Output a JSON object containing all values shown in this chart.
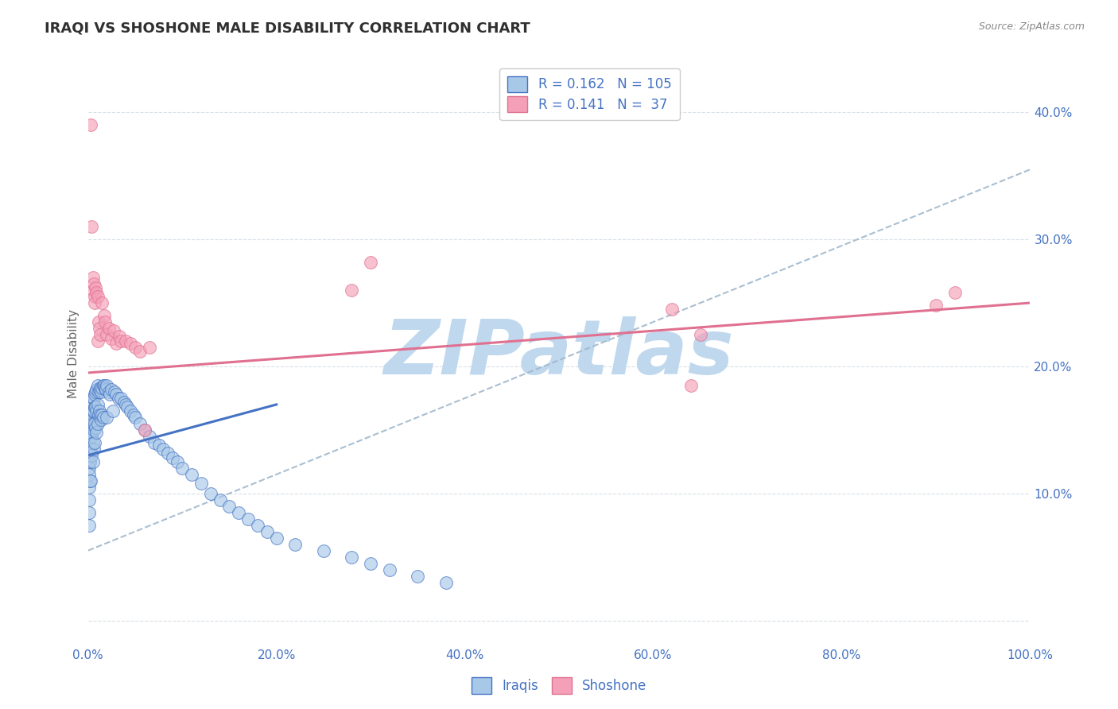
{
  "title": "IRAQI VS SHOSHONE MALE DISABILITY CORRELATION CHART",
  "source_text": "Source: ZipAtlas.com",
  "ylabel": "Male Disability",
  "xlim": [
    0.0,
    1.0
  ],
  "ylim": [
    -0.02,
    0.44
  ],
  "xtick_vals": [
    0.0,
    0.2,
    0.4,
    0.6,
    0.8,
    1.0
  ],
  "xtick_labels": [
    "0.0%",
    "20.0%",
    "40.0%",
    "60.0%",
    "80.0%",
    "100.0%"
  ],
  "ytick_vals": [
    0.0,
    0.1,
    0.2,
    0.3,
    0.4
  ],
  "ytick_labels_right": [
    "",
    "10.0%",
    "20.0%",
    "30.0%",
    "40.0%"
  ],
  "iraqi_color": "#a8c8e8",
  "shoshone_color": "#f4a0b8",
  "iraqi_line_color": "#4472c4",
  "shoshone_line_color": "#e07090",
  "dashed_line_color": "#a0b8cc",
  "R_iraqi": 0.162,
  "N_iraqi": 105,
  "R_shoshone": 0.141,
  "N_shoshone": 37,
  "legend_label_iraqi": "Iraqis",
  "legend_label_shoshone": "Shoshone",
  "background_color": "#ffffff",
  "grid_color": "#d8e0e8",
  "title_color": "#303030",
  "axis_color": "#4472c4",
  "watermark_color": "#c0d8ee",
  "iraqi_line_x": [
    0.0,
    0.2
  ],
  "iraqi_line_y": [
    0.13,
    0.17
  ],
  "shoshone_line_x": [
    0.0,
    1.0
  ],
  "shoshone_line_y": [
    0.195,
    0.25
  ],
  "dashed_line_x": [
    0.0,
    1.0
  ],
  "dashed_line_y": [
    0.055,
    0.355
  ],
  "iraqi_x": [
    0.001,
    0.001,
    0.001,
    0.001,
    0.001,
    0.001,
    0.001,
    0.001,
    0.001,
    0.001,
    0.002,
    0.002,
    0.002,
    0.002,
    0.002,
    0.002,
    0.003,
    0.003,
    0.003,
    0.003,
    0.003,
    0.004,
    0.004,
    0.004,
    0.004,
    0.005,
    0.005,
    0.005,
    0.005,
    0.005,
    0.006,
    0.006,
    0.006,
    0.006,
    0.007,
    0.007,
    0.007,
    0.007,
    0.008,
    0.008,
    0.008,
    0.009,
    0.009,
    0.009,
    0.01,
    0.01,
    0.01,
    0.011,
    0.011,
    0.012,
    0.012,
    0.013,
    0.013,
    0.014,
    0.014,
    0.015,
    0.015,
    0.016,
    0.016,
    0.017,
    0.018,
    0.019,
    0.02,
    0.02,
    0.022,
    0.023,
    0.025,
    0.026,
    0.028,
    0.03,
    0.032,
    0.035,
    0.038,
    0.04,
    0.042,
    0.045,
    0.048,
    0.05,
    0.055,
    0.06,
    0.065,
    0.07,
    0.075,
    0.08,
    0.085,
    0.09,
    0.095,
    0.1,
    0.11,
    0.12,
    0.13,
    0.14,
    0.15,
    0.16,
    0.17,
    0.18,
    0.19,
    0.2,
    0.22,
    0.25,
    0.28,
    0.3,
    0.32,
    0.35,
    0.38
  ],
  "iraqi_y": [
    0.15,
    0.14,
    0.135,
    0.125,
    0.12,
    0.115,
    0.105,
    0.095,
    0.085,
    0.075,
    0.16,
    0.155,
    0.145,
    0.135,
    0.125,
    0.11,
    0.165,
    0.155,
    0.145,
    0.135,
    0.11,
    0.17,
    0.158,
    0.145,
    0.13,
    0.175,
    0.165,
    0.155,
    0.14,
    0.125,
    0.175,
    0.165,
    0.15,
    0.135,
    0.178,
    0.168,
    0.155,
    0.14,
    0.18,
    0.168,
    0.152,
    0.182,
    0.165,
    0.148,
    0.185,
    0.17,
    0.155,
    0.18,
    0.162,
    0.182,
    0.165,
    0.183,
    0.162,
    0.18,
    0.158,
    0.183,
    0.162,
    0.185,
    0.16,
    0.185,
    0.183,
    0.182,
    0.185,
    0.16,
    0.18,
    0.178,
    0.182,
    0.165,
    0.18,
    0.178,
    0.175,
    0.175,
    0.172,
    0.17,
    0.168,
    0.165,
    0.162,
    0.16,
    0.155,
    0.15,
    0.145,
    0.14,
    0.138,
    0.135,
    0.132,
    0.128,
    0.125,
    0.12,
    0.115,
    0.108,
    0.1,
    0.095,
    0.09,
    0.085,
    0.08,
    0.075,
    0.07,
    0.065,
    0.06,
    0.055,
    0.05,
    0.045,
    0.04,
    0.035,
    0.03
  ],
  "shoshone_x": [
    0.003,
    0.004,
    0.005,
    0.005,
    0.006,
    0.007,
    0.007,
    0.008,
    0.009,
    0.01,
    0.01,
    0.011,
    0.012,
    0.013,
    0.015,
    0.017,
    0.018,
    0.02,
    0.022,
    0.025,
    0.027,
    0.03,
    0.033,
    0.035,
    0.04,
    0.045,
    0.05,
    0.055,
    0.06,
    0.065,
    0.28,
    0.3,
    0.62,
    0.64,
    0.65,
    0.9,
    0.92
  ],
  "shoshone_y": [
    0.39,
    0.31,
    0.27,
    0.26,
    0.265,
    0.255,
    0.25,
    0.262,
    0.258,
    0.255,
    0.22,
    0.235,
    0.23,
    0.225,
    0.25,
    0.24,
    0.235,
    0.225,
    0.23,
    0.222,
    0.228,
    0.218,
    0.224,
    0.22,
    0.22,
    0.218,
    0.215,
    0.212,
    0.15,
    0.215,
    0.26,
    0.282,
    0.245,
    0.185,
    0.225,
    0.248,
    0.258
  ]
}
